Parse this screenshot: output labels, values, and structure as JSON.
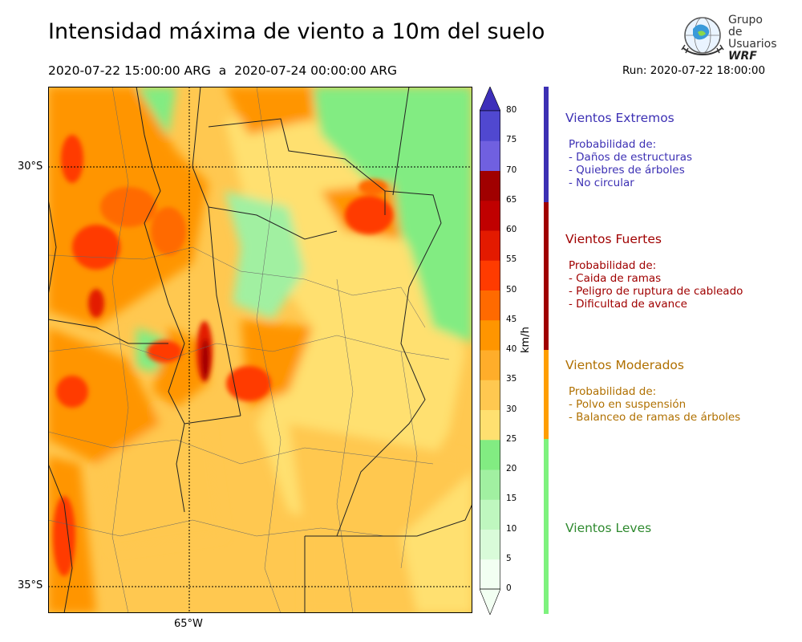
{
  "header": {
    "title": "Intensidad máxima de viento a 10m del suelo",
    "period": "2020-07-22 15:00:00 ARG  a  2020-07-24 00:00:00 ARG",
    "run": "Run: 2020-07-22 18:00:00"
  },
  "logo": {
    "line1": "Grupo de",
    "line2": "Usuarios",
    "line3": "WRF"
  },
  "map": {
    "lat_labels": [
      "30°S",
      "35°S"
    ],
    "lon_labels": [
      "65°W"
    ]
  },
  "colorbar": {
    "unit": "km/h",
    "ticks": [
      "0",
      "5",
      "10",
      "15",
      "20",
      "25",
      "30",
      "35",
      "40",
      "45",
      "50",
      "55",
      "60",
      "65",
      "70",
      "75",
      "80"
    ],
    "colors": [
      "#f2fff2",
      "#d9fbd9",
      "#bff7bf",
      "#a1f0a1",
      "#82ec82",
      "#ffe070",
      "#ffc850",
      "#ffad2a",
      "#ff9500",
      "#ff6a00",
      "#ff3b00",
      "#e31a00",
      "#c00000",
      "#a00000",
      "#7060e0",
      "#5048d0",
      "#3d2fba"
    ],
    "max_color": "#3d2fba"
  },
  "categories": [
    {
      "title": "Vientos Extremos",
      "color": "#3c30b4",
      "lines": [
        "Probabilidad de:",
        "- Daños de estructuras",
        "- Quiebres de árboles",
        "- No circular"
      ]
    },
    {
      "title": "Vientos Fuertes",
      "color": "#a00000",
      "lines": [
        "Probabilidad de:",
        "- Caida de ramas",
        "- Peligro de ruptura de cableado",
        "- Dificultad de avance"
      ]
    },
    {
      "title": "Vientos Moderados",
      "color": "#b07000",
      "bar_color": "#ff9e00",
      "lines": [
        "Probabilidad de:",
        "- Polvo en suspensión",
        "- Balanceo de ramas de árboles"
      ]
    },
    {
      "title": "Vientos Leves",
      "color": "#2f8a2f",
      "bar_color": "#7ef27e",
      "lines": []
    }
  ]
}
